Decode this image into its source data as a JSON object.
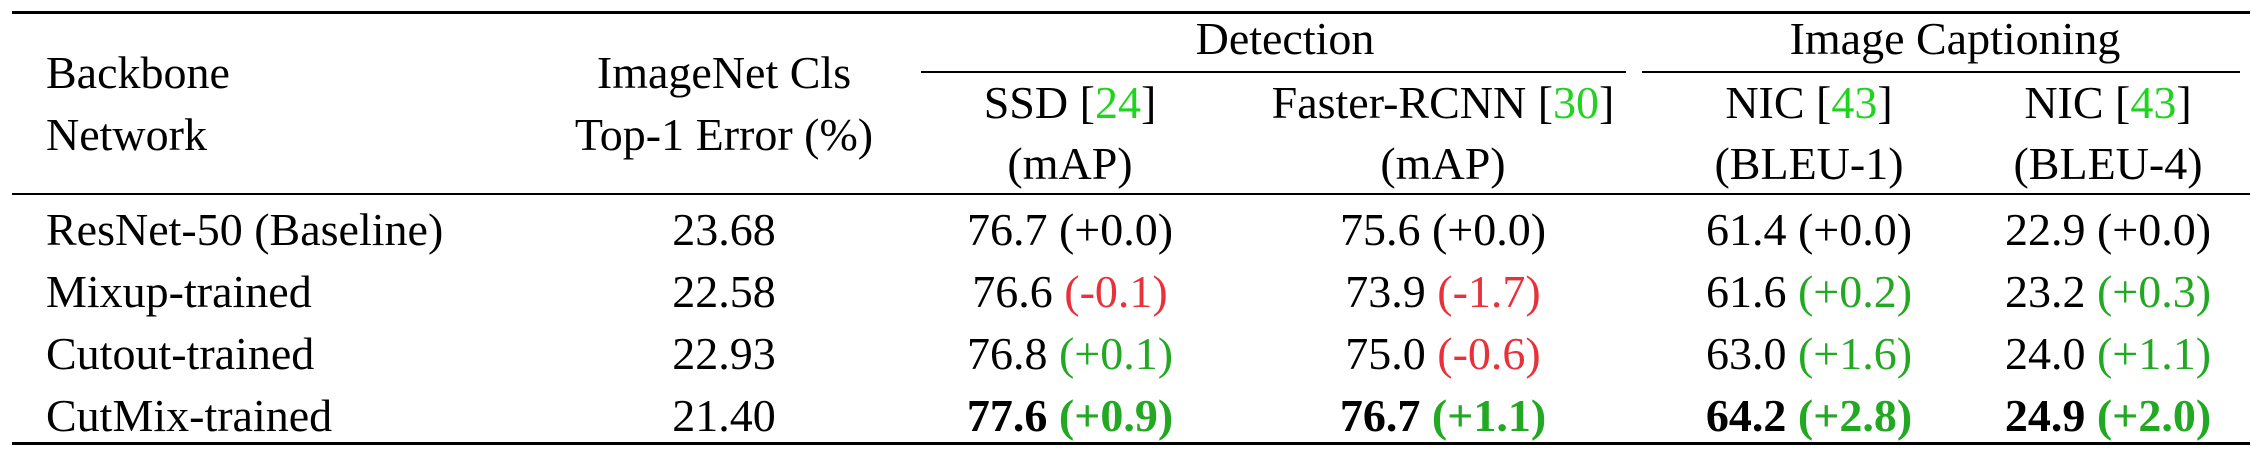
{
  "table": {
    "header": {
      "backbone": [
        "Backbone",
        "Network"
      ],
      "imagenet": [
        "ImageNet Cls",
        "Top-1 Error (%)"
      ],
      "group_detection": "Detection",
      "group_captioning": "Image Captioning",
      "columns": [
        {
          "name": "SSD [",
          "ref": "24",
          "close": "]",
          "metric": "(mAP)"
        },
        {
          "name": "Faster-RCNN [",
          "ref": "30",
          "close": "]",
          "metric": "(mAP)"
        },
        {
          "name": "NIC [",
          "ref": "43",
          "close": "]",
          "metric": "(BLEU-1)"
        },
        {
          "name": "NIC [",
          "ref": "43",
          "close": "]",
          "metric": "(BLEU-4)"
        }
      ]
    },
    "rows": [
      {
        "name": "ResNet-50 (Baseline)",
        "imagenet": "23.68",
        "cells": [
          {
            "value": "76.7",
            "delta": "(+0.0)",
            "sign": "zero"
          },
          {
            "value": "75.6",
            "delta": "(+0.0)",
            "sign": "zero"
          },
          {
            "value": "61.4",
            "delta": "(+0.0)",
            "sign": "zero"
          },
          {
            "value": "22.9",
            "delta": "(+0.0)",
            "sign": "zero"
          }
        ]
      },
      {
        "name": "Mixup-trained",
        "imagenet": "22.58",
        "cells": [
          {
            "value": "76.6",
            "delta": "(-0.1)",
            "sign": "neg"
          },
          {
            "value": "73.9",
            "delta": "(-1.7)",
            "sign": "neg"
          },
          {
            "value": "61.6",
            "delta": "(+0.2)",
            "sign": "pos"
          },
          {
            "value": "23.2",
            "delta": "(+0.3)",
            "sign": "pos"
          }
        ]
      },
      {
        "name": "Cutout-trained",
        "imagenet": "22.93",
        "cells": [
          {
            "value": "76.8",
            "delta": "(+0.1)",
            "sign": "pos"
          },
          {
            "value": "75.0",
            "delta": "(-0.6)",
            "sign": "neg"
          },
          {
            "value": "63.0",
            "delta": "(+1.6)",
            "sign": "pos"
          },
          {
            "value": "24.0",
            "delta": "(+1.1)",
            "sign": "pos"
          }
        ]
      },
      {
        "name": "CutMix-trained",
        "imagenet": "21.40",
        "cells": [
          {
            "value": "77.6",
            "delta": "(+0.9)",
            "sign": "pos",
            "bold": true
          },
          {
            "value": "76.7",
            "delta": "(+1.1)",
            "sign": "pos",
            "bold": true
          },
          {
            "value": "64.2",
            "delta": "(+2.8)",
            "sign": "pos",
            "bold": true
          },
          {
            "value": "24.9",
            "delta": "(+2.0)",
            "sign": "pos",
            "bold": true
          }
        ]
      }
    ],
    "colors": {
      "positive": "#22a822",
      "negative": "#e8313a",
      "citation": "#1fd41f"
    }
  }
}
